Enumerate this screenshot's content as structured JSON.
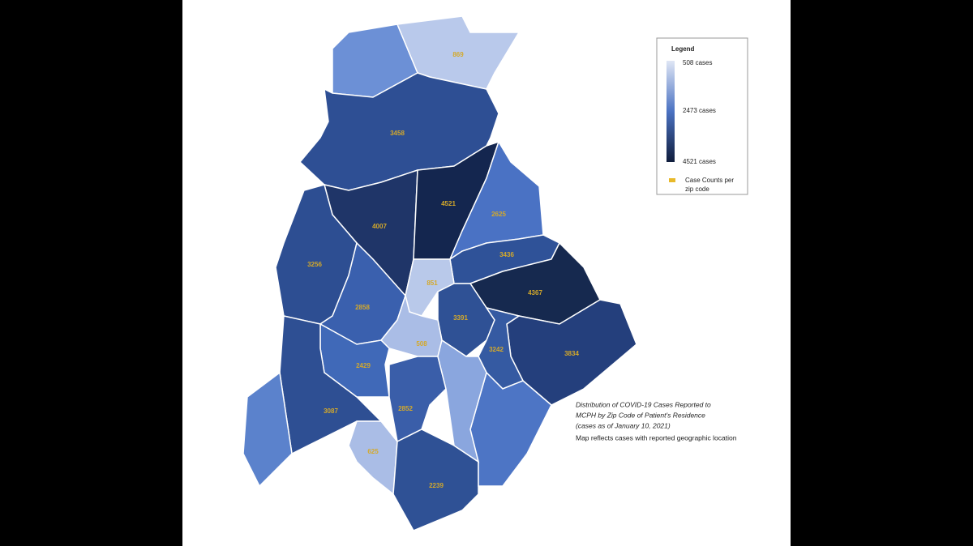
{
  "map": {
    "outline_color": "#ffffff",
    "regions": [
      {
        "color": "#6c90d6"
      },
      {
        "case_count": 869,
        "color": "#b9c9eb"
      },
      {
        "case_count": 3458,
        "color": "#2e4f94"
      },
      {
        "case_count": 4007,
        "color": "#1f3568"
      },
      {
        "case_count": 4521,
        "color": "#14264f"
      },
      {
        "case_count": 2625,
        "color": "#4a72c4"
      },
      {
        "case_count": 3436,
        "color": "#2f5298"
      },
      {
        "case_count": 4367,
        "color": "#16294f"
      },
      {
        "case_count": 3834,
        "color": "#243f7c"
      },
      {
        "case_count": 3256,
        "color": "#2d4e92"
      },
      {
        "case_count": 2858,
        "color": "#3a60ae"
      },
      {
        "case_count": 851,
        "color": "#b9c9ea"
      },
      {
        "case_count": 3391,
        "color": "#2f5195"
      },
      {
        "case_count": 3242,
        "color": "#355aa2"
      },
      {
        "case_count": 508,
        "color": "#aabde6"
      },
      {
        "case_count": 2429,
        "color": "#4069b8"
      },
      {
        "case_count": 3087,
        "color": "#2e4f93"
      },
      {
        "color": "#5b82cc"
      },
      {
        "case_count": 2852,
        "color": "#3a5ea9"
      },
      {
        "case_count": 625,
        "color": "#aabde6"
      },
      {
        "case_count": 2239,
        "color": "#2f5195"
      },
      {
        "color": "#4d75c5"
      },
      {
        "color": "#8aa6de"
      }
    ]
  },
  "legend": {
    "title": "Legend",
    "scale": [
      {
        "label": "508 cases",
        "color": "#dfe6f5"
      },
      {
        "label": "2473 cases",
        "color": "#4b72c2"
      },
      {
        "label": "4521 cases",
        "color": "#101d3c"
      }
    ],
    "marker_color": "#e8b92a",
    "marker_label": [
      "Case Counts per",
      "zip code"
    ]
  },
  "caption": {
    "italic_lines": [
      "Distribution of COVID-19 Cases Reported to",
      "MCPH by Zip Code of Patient's Residence",
      "(cases as of January 10, 2021)"
    ],
    "note": "Map reflects cases with reported geographic location"
  }
}
